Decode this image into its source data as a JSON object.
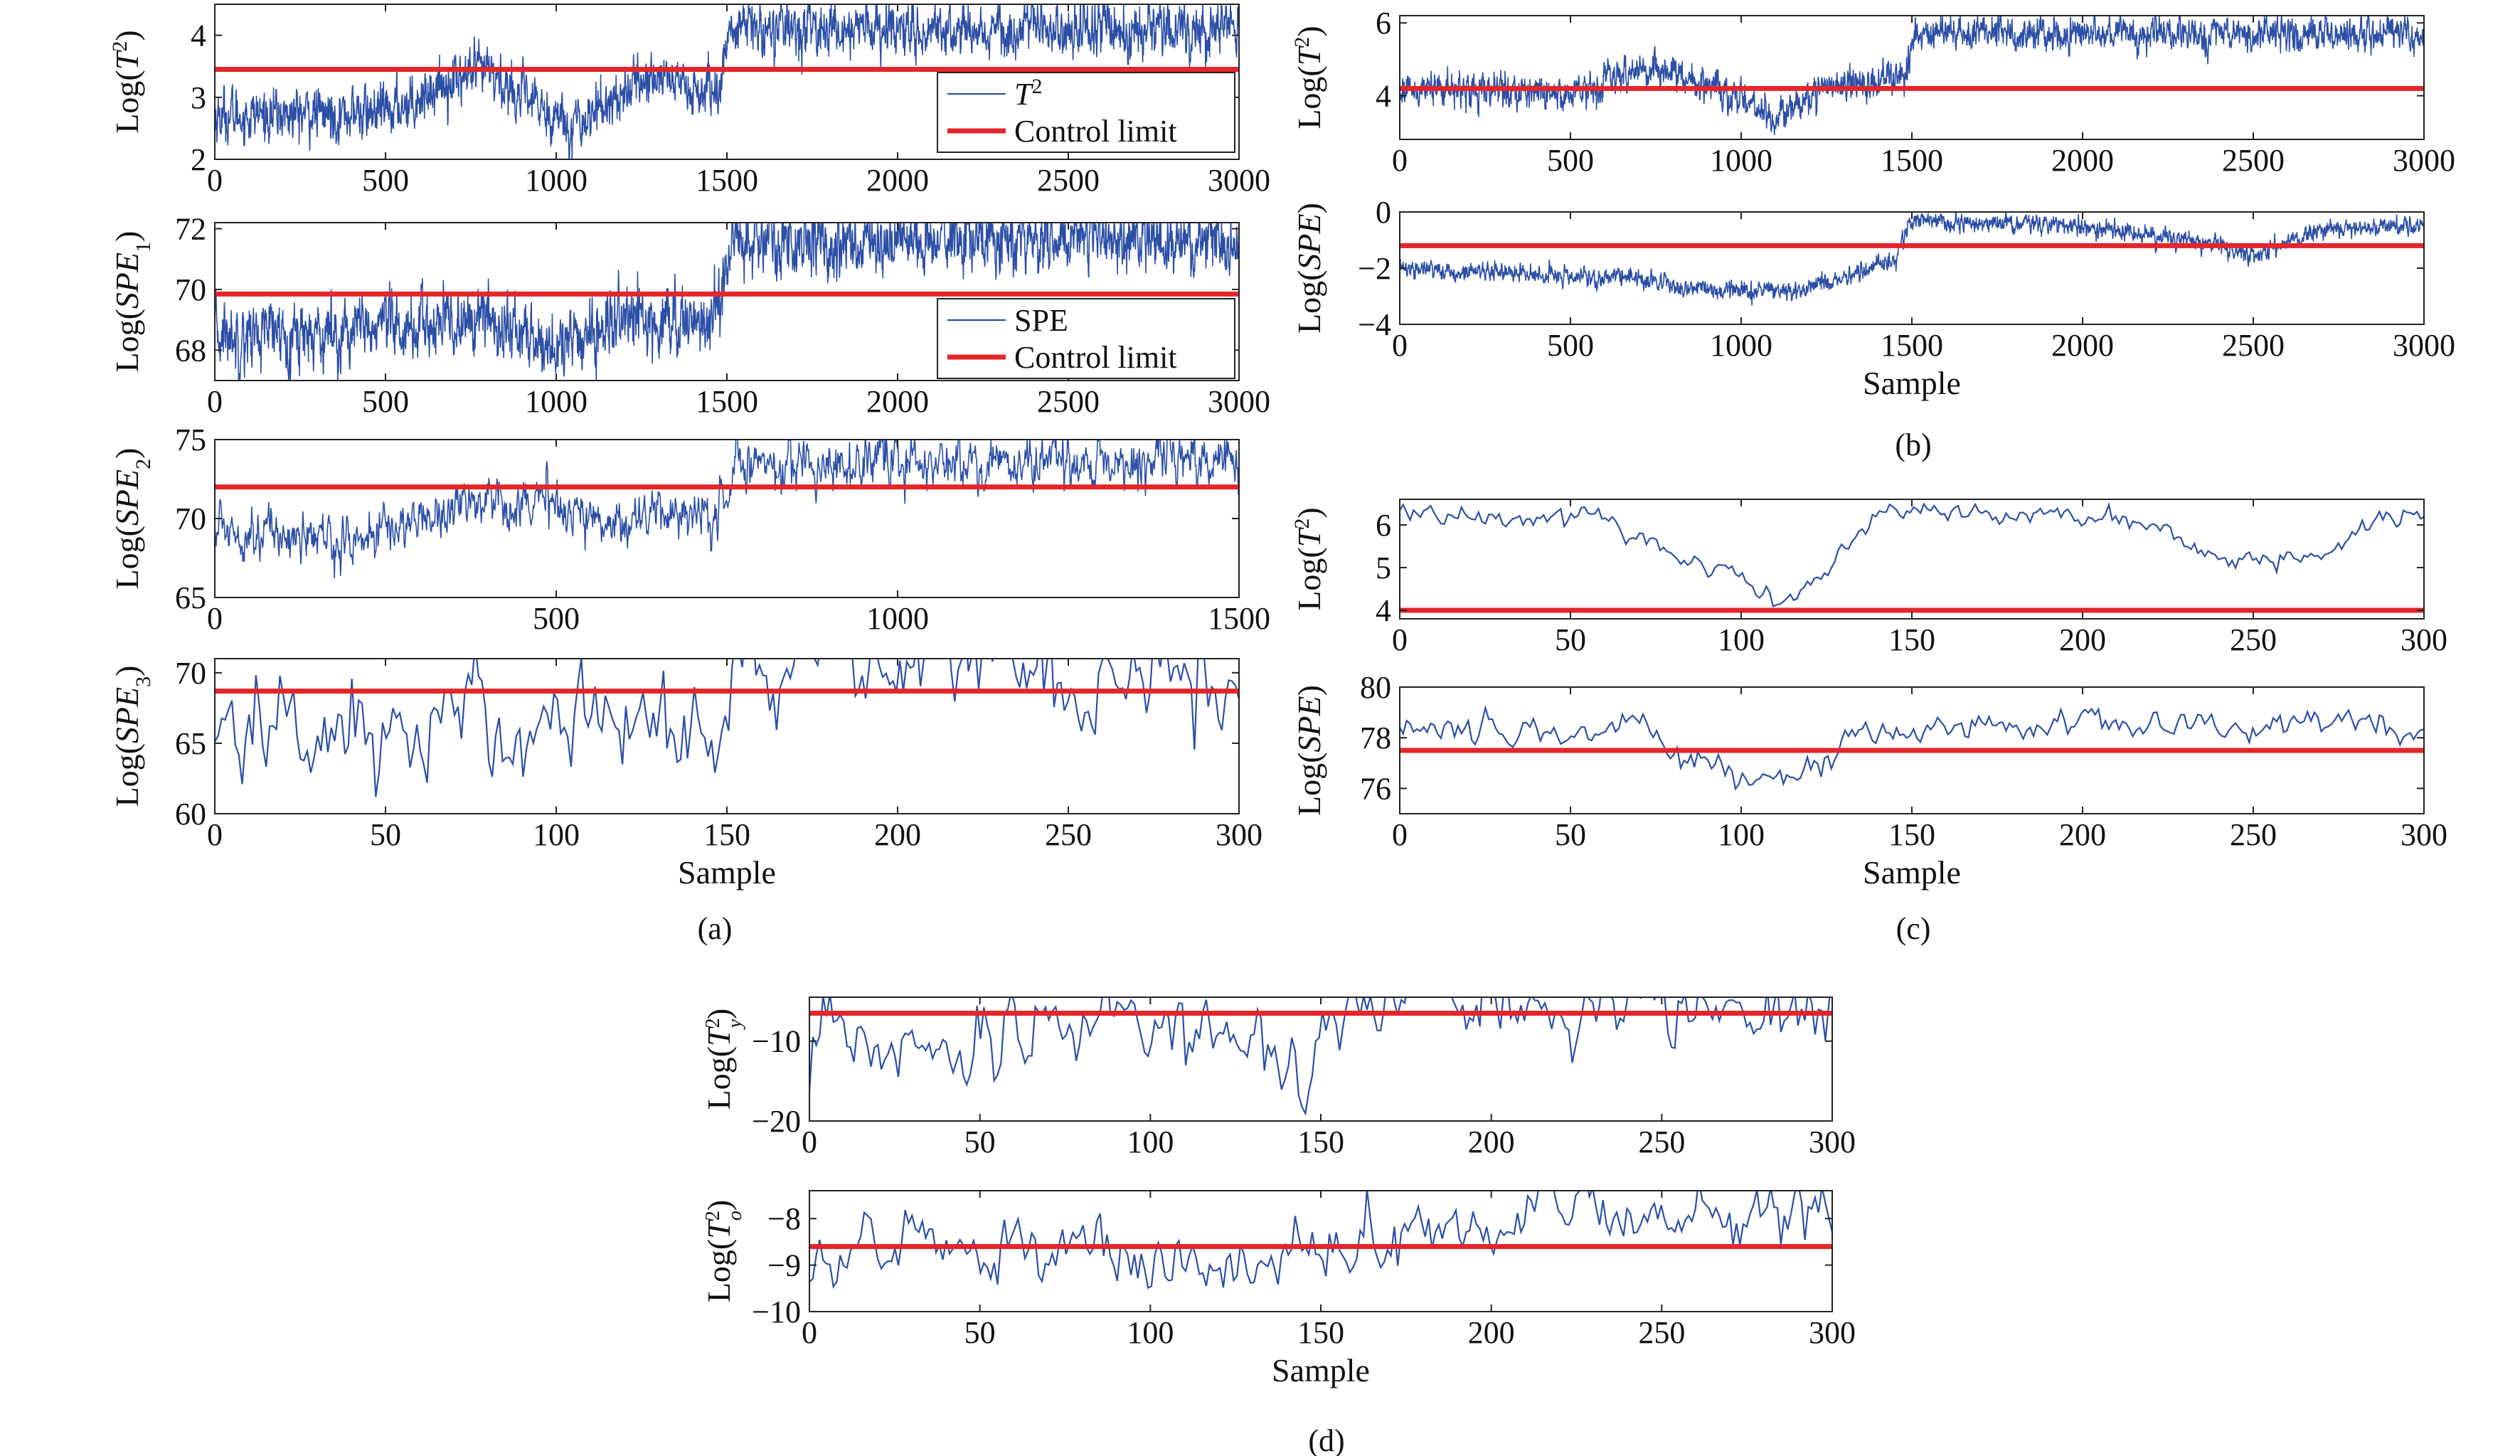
{
  "colors": {
    "series": "#2c4fa6",
    "limit": "#e3262a",
    "axis": "#222222",
    "background": "#ffffff"
  },
  "panel_labels": [
    "(a)",
    "(b)",
    "(c)",
    "(d)"
  ],
  "chart_data": [
    {
      "panel": "(a)",
      "type": "line",
      "ylabel": "Log(T^2)",
      "xlabel": "",
      "xlim": [
        0,
        3000
      ],
      "ylim": [
        2,
        4.5
      ],
      "xticks": [
        0,
        500,
        1000,
        1500,
        2000,
        2500,
        3000
      ],
      "yticks": [
        2,
        3,
        4
      ],
      "control_limit": 3.45,
      "n_points": 3000,
      "profile": [
        [
          0,
          2.7
        ],
        [
          500,
          2.75
        ],
        [
          700,
          3.3
        ],
        [
          800,
          3.4
        ],
        [
          900,
          3.0
        ],
        [
          1050,
          2.55
        ],
        [
          1200,
          3.1
        ],
        [
          1300,
          3.4
        ],
        [
          1450,
          3.0
        ],
        [
          1480,
          3.2
        ],
        [
          1510,
          4.1
        ],
        [
          3000,
          4.1
        ]
      ],
      "noise": 0.18,
      "legend": [
        {
          "label": "T2",
          "kind": "series"
        },
        {
          "label": "Control limit",
          "kind": "limit"
        }
      ]
    },
    {
      "panel": "(a)",
      "type": "line",
      "ylabel": "Log(SPE1)",
      "xlabel": "",
      "xlim": [
        0,
        3000
      ],
      "ylim": [
        67,
        72.2
      ],
      "xticks": [
        0,
        500,
        1000,
        1500,
        2000,
        2500,
        3000
      ],
      "yticks": [
        68,
        70,
        72
      ],
      "control_limit": 69.85,
      "n_points": 3000,
      "profile": [
        [
          0,
          68.5
        ],
        [
          600,
          68.7
        ],
        [
          800,
          69.0
        ],
        [
          1000,
          68.0
        ],
        [
          1200,
          69.0
        ],
        [
          1450,
          69.0
        ],
        [
          1480,
          69.5
        ],
        [
          1510,
          71.6
        ],
        [
          3000,
          71.6
        ]
      ],
      "noise": 0.45,
      "legend": [
        {
          "label": "SPE",
          "kind": "series"
        },
        {
          "label": "Control limit",
          "kind": "limit"
        }
      ]
    },
    {
      "panel": "(a)",
      "type": "line",
      "ylabel": "Log(SPE2)",
      "xlabel": "",
      "xlim": [
        0,
        1500
      ],
      "ylim": [
        65,
        75
      ],
      "xticks": [
        0,
        500,
        1000,
        1500
      ],
      "yticks": [
        65,
        70,
        75
      ],
      "control_limit": 72,
      "n_points": 1500,
      "profile": [
        [
          0,
          69.5
        ],
        [
          200,
          68.5
        ],
        [
          380,
          71.2
        ],
        [
          500,
          71.0
        ],
        [
          560,
          69.8
        ],
        [
          700,
          70.5
        ],
        [
          735,
          69.5
        ],
        [
          755,
          73.5
        ],
        [
          1500,
          73.4
        ]
      ],
      "noise": 0.7,
      "legend": []
    },
    {
      "panel": "(a)",
      "type": "line",
      "ylabel": "Log(SPE3)",
      "xlabel": "Sample",
      "xlim": [
        0,
        300
      ],
      "ylim": [
        60,
        71
      ],
      "xticks": [
        0,
        50,
        100,
        150,
        200,
        250,
        300
      ],
      "yticks": [
        60,
        65,
        70
      ],
      "control_limit": 68.7,
      "n_points": 300,
      "profile": [
        [
          0,
          66.0
        ],
        [
          70,
          66.0
        ],
        [
          100,
          67.0
        ],
        [
          145,
          66.5
        ],
        [
          149,
          67.0
        ],
        [
          152,
          70.3
        ],
        [
          300,
          70.3
        ]
      ],
      "noise": 1.8,
      "legend": []
    },
    {
      "panel": "(b)",
      "type": "line",
      "ylabel": "Log(T^2)",
      "xlabel": "",
      "xlim": [
        0,
        3000
      ],
      "ylim": [
        2.8,
        6.2
      ],
      "xticks": [
        0,
        500,
        1000,
        1500,
        2000,
        2500,
        3000
      ],
      "yticks": [
        4,
        6
      ],
      "control_limit": 4.2,
      "n_points": 3000,
      "profile": [
        [
          0,
          4.2
        ],
        [
          500,
          4.1
        ],
        [
          750,
          4.8
        ],
        [
          900,
          4.3
        ],
        [
          1100,
          3.4
        ],
        [
          1250,
          4.3
        ],
        [
          1480,
          4.5
        ],
        [
          1510,
          5.7
        ],
        [
          3000,
          5.7
        ]
      ],
      "noise": 0.2,
      "legend": []
    },
    {
      "panel": "(b)",
      "type": "line",
      "ylabel": "Log(SPE)",
      "xlabel": "Sample",
      "xlim": [
        0,
        3000
      ],
      "ylim": [
        -4,
        0
      ],
      "xticks": [
        0,
        500,
        1000,
        1500,
        2000,
        2500,
        3000
      ],
      "yticks": [
        -4,
        -2,
        0
      ],
      "control_limit": -1.2,
      "n_points": 3000,
      "profile": [
        [
          0,
          -2.0
        ],
        [
          700,
          -2.4
        ],
        [
          900,
          -2.8
        ],
        [
          1150,
          -2.8
        ],
        [
          1300,
          -2.4
        ],
        [
          1450,
          -1.7
        ],
        [
          1500,
          -0.3
        ],
        [
          2000,
          -0.5
        ],
        [
          2400,
          -1.2
        ],
        [
          2500,
          -1.6
        ],
        [
          2700,
          -0.6
        ],
        [
          3000,
          -0.5
        ]
      ],
      "noise": 0.14,
      "legend": []
    },
    {
      "panel": "(c)",
      "type": "line",
      "ylabel": "Log(T^2)",
      "xlabel": "",
      "xlim": [
        0,
        300
      ],
      "ylim": [
        3.8,
        6.6
      ],
      "xticks": [
        0,
        50,
        100,
        150,
        200,
        250,
        300
      ],
      "yticks": [
        4,
        5,
        6
      ],
      "control_limit": 4.0,
      "n_points": 300,
      "profile": [
        [
          0,
          6.3
        ],
        [
          60,
          6.2
        ],
        [
          80,
          5.3
        ],
        [
          100,
          4.8
        ],
        [
          112,
          4.1
        ],
        [
          125,
          5.0
        ],
        [
          140,
          6.3
        ],
        [
          160,
          6.3
        ],
        [
          215,
          6.1
        ],
        [
          225,
          5.7
        ],
        [
          250,
          5.1
        ],
        [
          265,
          5.2
        ],
        [
          280,
          5.9
        ],
        [
          300,
          6.3
        ]
      ],
      "noise": 0.12,
      "legend": []
    },
    {
      "panel": "(c)",
      "type": "line",
      "ylabel": "Log(SPE)",
      "xlabel": "Sample",
      "xlim": [
        0,
        300
      ],
      "ylim": [
        75,
        80
      ],
      "xticks": [
        0,
        50,
        100,
        150,
        200,
        250,
        300
      ],
      "yticks": [
        76,
        78,
        80
      ],
      "control_limit": 77.5,
      "n_points": 300,
      "profile": [
        [
          0,
          78.4
        ],
        [
          70,
          78.2
        ],
        [
          90,
          77.0
        ],
        [
          110,
          76.0
        ],
        [
          125,
          77.0
        ],
        [
          140,
          78.4
        ],
        [
          300,
          78.6
        ]
      ],
      "noise": 0.28,
      "legend": []
    },
    {
      "panel": "(d)",
      "type": "line",
      "ylabel": "Log(T2y)",
      "xlabel": "",
      "xlim": [
        0,
        300
      ],
      "ylim": [
        -20,
        -4.5
      ],
      "xticks": [
        0,
        50,
        100,
        150,
        200,
        250,
        300
      ],
      "yticks": [
        -20,
        -10
      ],
      "control_limit": -6.5,
      "n_points": 300,
      "profile": [
        [
          0,
          -11.0
        ],
        [
          70,
          -9.0
        ],
        [
          90,
          -7.0
        ],
        [
          130,
          -9.5
        ],
        [
          148,
          -12.0
        ],
        [
          151,
          -5.3
        ],
        [
          300,
          -5.5
        ]
      ],
      "noise": 2.2,
      "legend": []
    },
    {
      "panel": "(d)",
      "type": "line",
      "ylabel": "Log(T2o)",
      "xlabel": "Sample",
      "xlim": [
        0,
        300
      ],
      "ylim": [
        -10,
        -7.4
      ],
      "xticks": [
        0,
        50,
        100,
        150,
        200,
        250,
        300
      ],
      "yticks": [
        -10,
        -9,
        -8
      ],
      "control_limit": -8.6,
      "n_points": 300,
      "profile": [
        [
          0,
          -8.8
        ],
        [
          80,
          -8.4
        ],
        [
          100,
          -9.0
        ],
        [
          120,
          -9.2
        ],
        [
          145,
          -8.9
        ],
        [
          160,
          -8.3
        ],
        [
          200,
          -7.9
        ],
        [
          240,
          -7.7
        ],
        [
          300,
          -7.9
        ]
      ],
      "noise": 0.3,
      "legend": []
    }
  ]
}
